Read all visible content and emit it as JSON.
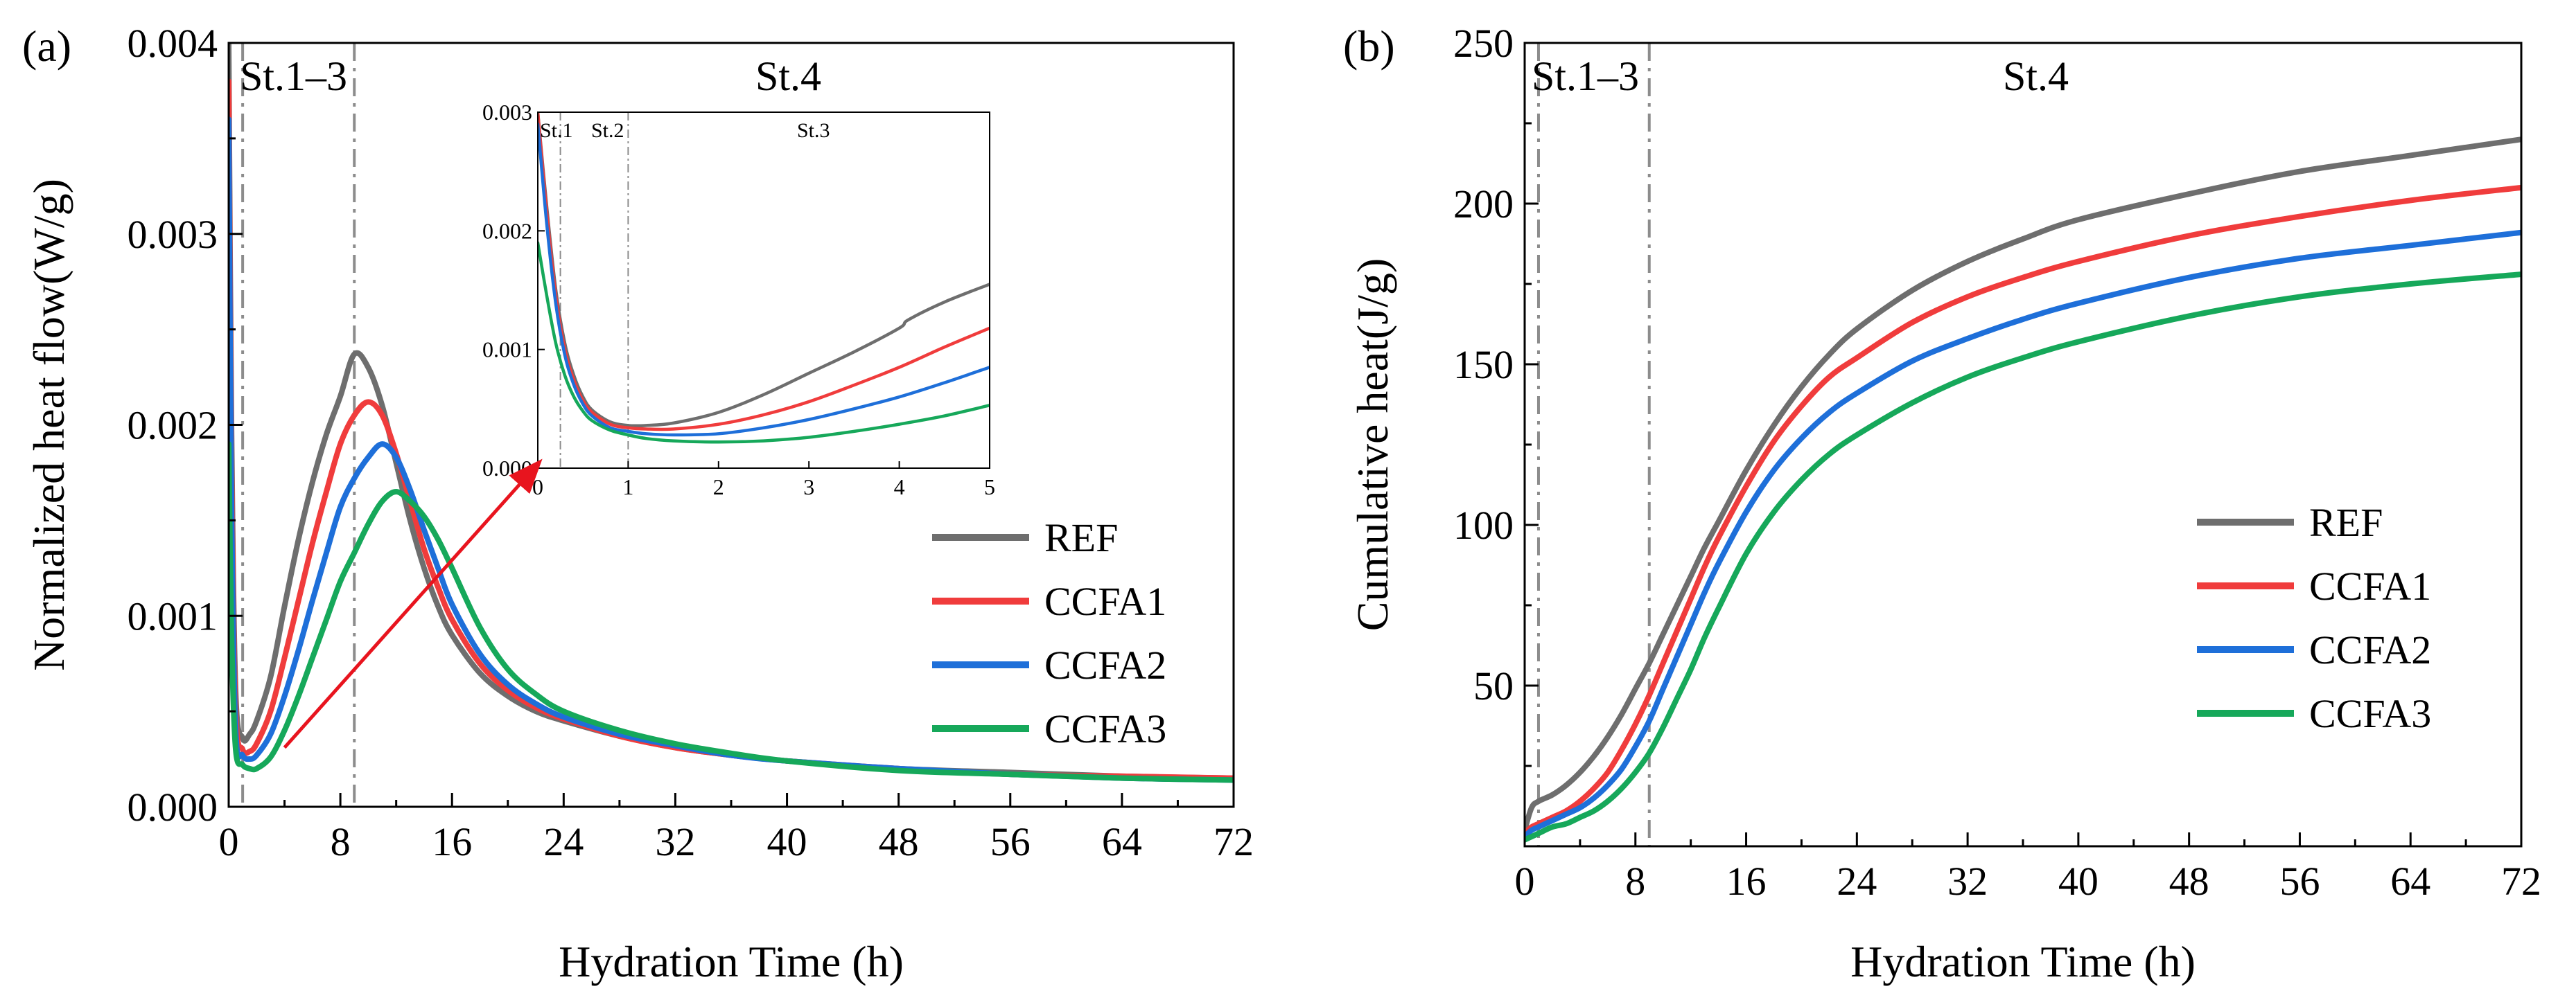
{
  "colors": {
    "REF": "#6e6e6e",
    "CCFA1": "#f03c3c",
    "CCFA2": "#1e6fd9",
    "CCFA3": "#16a85a",
    "divider": "#8c8c8c",
    "arrow": "#e8141e"
  },
  "chart_data": [
    {
      "id": "a",
      "type": "line",
      "panel_label": "(a)",
      "xlabel": "Hydration Time (h)",
      "ylabel": "Normalized heat flow(W/g)",
      "xlim": [
        0,
        72
      ],
      "ylim": [
        0,
        0.004
      ],
      "xticks": [
        0,
        8,
        16,
        24,
        32,
        40,
        48,
        56,
        64,
        72
      ],
      "xtick_labels": [
        "0",
        "8",
        "16",
        "24",
        "32",
        "40",
        "48",
        "56",
        "64",
        "72"
      ],
      "yticks": [
        0,
        0.001,
        0.002,
        0.003,
        0.004
      ],
      "ytick_labels": [
        "0.000",
        "0.001",
        "0.002",
        "0.003",
        "0.004"
      ],
      "stage_lines_x": [
        1.0,
        9.0
      ],
      "stage_labels": [
        "St.1–3",
        "St.4"
      ],
      "legend": [
        "REF",
        "CCFA1",
        "CCFA2",
        "CCFA3"
      ],
      "series": [
        {
          "name": "REF",
          "x": [
            0,
            0.2,
            0.5,
            1,
            1.5,
            2,
            3,
            4,
            5,
            6,
            7,
            8,
            9,
            10,
            11,
            12,
            13,
            14,
            15,
            16,
            18,
            20,
            22,
            24,
            28,
            32,
            36,
            40,
            48,
            56,
            64,
            72
          ],
          "y": [
            0.004,
            0.002,
            0.0006,
            0.00036,
            0.00038,
            0.00045,
            0.00068,
            0.00105,
            0.0014,
            0.0017,
            0.00195,
            0.00215,
            0.00237,
            0.0023,
            0.0021,
            0.0018,
            0.0015,
            0.00125,
            0.00105,
            0.0009,
            0.0007,
            0.00058,
            0.0005,
            0.00045,
            0.00037,
            0.00031,
            0.00027,
            0.00024,
            0.0002,
            0.00018,
            0.00016,
            0.00015
          ]
        },
        {
          "name": "CCFA1",
          "x": [
            0,
            0.2,
            0.5,
            1,
            1.5,
            2,
            3,
            4,
            5,
            6,
            7,
            8,
            9,
            10,
            11,
            12,
            13,
            14,
            15,
            16,
            18,
            20,
            22,
            24,
            28,
            32,
            36,
            40,
            48,
            56,
            64,
            72
          ],
          "y": [
            0.0038,
            0.0018,
            0.0005,
            0.0003,
            0.00029,
            0.00033,
            0.0005,
            0.00078,
            0.00108,
            0.00138,
            0.00165,
            0.0019,
            0.00205,
            0.00212,
            0.00205,
            0.00185,
            0.0016,
            0.00135,
            0.00115,
            0.00098,
            0.00075,
            0.00061,
            0.00052,
            0.00046,
            0.00037,
            0.00031,
            0.00027,
            0.00024,
            0.0002,
            0.00017,
            0.00016,
            0.00015
          ]
        },
        {
          "name": "CCFA2",
          "x": [
            0,
            0.2,
            0.5,
            1,
            1.5,
            2,
            3,
            4,
            5,
            6,
            7,
            8,
            9,
            10,
            11,
            12,
            13,
            14,
            15,
            16,
            18,
            20,
            22,
            24,
            28,
            32,
            36,
            40,
            48,
            56,
            64,
            72
          ],
          "y": [
            0.0036,
            0.0016,
            0.0004,
            0.00027,
            0.00025,
            0.00027,
            0.00038,
            0.00058,
            0.00082,
            0.00108,
            0.00133,
            0.00157,
            0.00172,
            0.00183,
            0.0019,
            0.00183,
            0.00166,
            0.00145,
            0.00125,
            0.00106,
            0.0008,
            0.00064,
            0.00054,
            0.00047,
            0.00038,
            0.00032,
            0.00027,
            0.00024,
            0.0002,
            0.00017,
            0.00015,
            0.00014
          ]
        },
        {
          "name": "CCFA3",
          "x": [
            0,
            0.2,
            0.5,
            1,
            1.5,
            2,
            3,
            4,
            5,
            6,
            7,
            8,
            9,
            10,
            11,
            12,
            13,
            14,
            15,
            16,
            18,
            20,
            22,
            24,
            28,
            32,
            36,
            40,
            48,
            56,
            64,
            72
          ],
          "y": [
            0.0019,
            0.0009,
            0.0003,
            0.00022,
            0.0002,
            0.0002,
            0.00026,
            0.0004,
            0.00058,
            0.00078,
            0.00098,
            0.00118,
            0.00133,
            0.00148,
            0.0016,
            0.00165,
            0.0016,
            0.00152,
            0.0014,
            0.00125,
            0.00094,
            0.00072,
            0.00059,
            0.0005,
            0.0004,
            0.00033,
            0.00028,
            0.00024,
            0.00019,
            0.00017,
            0.00015,
            0.00014
          ]
        }
      ]
    },
    {
      "id": "a-inset",
      "type": "line",
      "xlim": [
        0,
        5
      ],
      "ylim": [
        0,
        0.003
      ],
      "xticks": [
        0,
        1,
        2,
        3,
        4,
        5
      ],
      "xtick_labels": [
        "0",
        "1",
        "2",
        "3",
        "4",
        "5"
      ],
      "yticks": [
        0,
        0.001,
        0.002,
        0.003
      ],
      "ytick_labels": [
        "0.000",
        "0.001",
        "0.002",
        "0.003"
      ],
      "stage_lines_x": [
        0.25,
        1.0
      ],
      "stage_labels": [
        "St.1",
        "St.2",
        "St.3"
      ],
      "series": [
        {
          "name": "REF",
          "x": [
            0,
            0.1,
            0.2,
            0.3,
            0.4,
            0.5,
            0.6,
            0.8,
            1.0,
            1.2,
            1.5,
            2,
            2.5,
            3,
            3.5,
            4,
            4.1,
            4.5,
            5
          ],
          "y": [
            0.003,
            0.0022,
            0.0015,
            0.00105,
            0.00078,
            0.0006,
            0.00049,
            0.00039,
            0.00036,
            0.00036,
            0.00038,
            0.00047,
            0.00062,
            0.0008,
            0.00098,
            0.00118,
            0.00125,
            0.0014,
            0.00155
          ]
        },
        {
          "name": "CCFA1",
          "x": [
            0,
            0.1,
            0.2,
            0.3,
            0.4,
            0.5,
            0.6,
            0.8,
            1.0,
            1.2,
            1.5,
            2,
            2.5,
            3,
            3.5,
            4,
            4.5,
            5
          ],
          "y": [
            0.003,
            0.00215,
            0.00145,
            0.001,
            0.00074,
            0.00057,
            0.00047,
            0.00037,
            0.00034,
            0.00033,
            0.00033,
            0.00037,
            0.00045,
            0.00056,
            0.0007,
            0.00085,
            0.00102,
            0.00118
          ]
        },
        {
          "name": "CCFA2",
          "x": [
            0,
            0.1,
            0.2,
            0.3,
            0.4,
            0.5,
            0.6,
            0.8,
            1.0,
            1.2,
            1.5,
            2,
            2.5,
            3,
            3.5,
            4,
            4.5,
            5
          ],
          "y": [
            0.0029,
            0.00205,
            0.00138,
            0.00095,
            0.0007,
            0.00054,
            0.00044,
            0.00034,
            0.00031,
            0.00029,
            0.00028,
            0.00029,
            0.00034,
            0.00041,
            0.0005,
            0.0006,
            0.00072,
            0.00085
          ]
        },
        {
          "name": "CCFA3",
          "x": [
            0,
            0.1,
            0.2,
            0.3,
            0.4,
            0.5,
            0.6,
            0.8,
            1.0,
            1.2,
            1.5,
            2,
            2.5,
            3,
            3.5,
            4,
            4.5,
            5
          ],
          "y": [
            0.0019,
            0.00145,
            0.00105,
            0.00078,
            0.0006,
            0.00048,
            0.0004,
            0.00032,
            0.00028,
            0.00025,
            0.00023,
            0.00022,
            0.00023,
            0.00026,
            0.00031,
            0.00037,
            0.00044,
            0.00053
          ]
        }
      ]
    },
    {
      "id": "b",
      "type": "line",
      "panel_label": "(b)",
      "xlabel": "Hydration Time (h)",
      "ylabel": "Cumulative heat(J/g)",
      "xlim": [
        0,
        72
      ],
      "ylim": [
        0,
        250
      ],
      "xticks": [
        0,
        8,
        16,
        24,
        32,
        40,
        48,
        56,
        64,
        72
      ],
      "xtick_labels": [
        "0",
        "8",
        "16",
        "24",
        "32",
        "40",
        "48",
        "56",
        "64",
        "72"
      ],
      "yticks": [
        50,
        100,
        150,
        200,
        250
      ],
      "ytick_labels": [
        "50",
        "100",
        "150",
        "200",
        "250"
      ],
      "stage_lines_x": [
        1.0,
        9.0
      ],
      "stage_labels": [
        "St.1–3",
        "St.4"
      ],
      "legend": [
        "REF",
        "CCFA1",
        "CCFA2",
        "CCFA3"
      ],
      "series": [
        {
          "name": "REF",
          "x": [
            0,
            0.5,
            1,
            2,
            3,
            4,
            5,
            6,
            7,
            8,
            9,
            10,
            11,
            12,
            13,
            14,
            16,
            18,
            20,
            22,
            24,
            28,
            32,
            36,
            40,
            48,
            56,
            64,
            72
          ],
          "y": [
            5,
            12,
            14,
            16,
            19,
            23,
            28,
            34,
            41,
            49,
            57,
            66,
            75,
            84,
            93,
            101,
            117,
            131,
            143,
            153,
            161,
            173,
            182,
            189,
            195,
            203,
            210,
            215,
            220
          ]
        },
        {
          "name": "CCFA1",
          "x": [
            0,
            0.5,
            1,
            2,
            3,
            4,
            5,
            6,
            7,
            8,
            9,
            10,
            11,
            12,
            13,
            14,
            16,
            18,
            20,
            22,
            24,
            28,
            32,
            36,
            40,
            48,
            56,
            64,
            72
          ],
          "y": [
            4,
            6,
            7,
            9,
            11,
            14,
            18,
            23,
            30,
            38,
            47,
            57,
            67,
            77,
            87,
            96,
            112,
            126,
            137,
            146,
            152,
            163,
            171,
            177,
            182,
            190,
            196,
            201,
            205
          ]
        },
        {
          "name": "CCFA2",
          "x": [
            0,
            0.5,
            1,
            2,
            3,
            4,
            5,
            6,
            7,
            8,
            9,
            10,
            11,
            12,
            13,
            14,
            16,
            18,
            20,
            22,
            24,
            28,
            32,
            36,
            40,
            48,
            56,
            64,
            72
          ],
          "y": [
            3,
            5,
            6,
            8,
            10,
            12,
            15,
            19,
            24,
            31,
            39,
            49,
            59,
            69,
            79,
            88,
            104,
            117,
            127,
            135,
            141,
            151,
            158,
            164,
            169,
            177,
            183,
            187,
            191
          ]
        },
        {
          "name": "CCFA3",
          "x": [
            0,
            0.5,
            1,
            2,
            3,
            4,
            5,
            6,
            7,
            8,
            9,
            10,
            11,
            12,
            13,
            14,
            16,
            18,
            20,
            22,
            24,
            28,
            32,
            36,
            40,
            48,
            56,
            64,
            72
          ],
          "y": [
            2,
            3,
            4,
            6,
            7,
            9,
            11,
            14,
            18,
            23,
            29,
            37,
            46,
            55,
            65,
            74,
            91,
            104,
            114,
            122,
            128,
            138,
            146,
            152,
            157,
            165,
            171,
            175,
            178
          ]
        }
      ]
    }
  ]
}
